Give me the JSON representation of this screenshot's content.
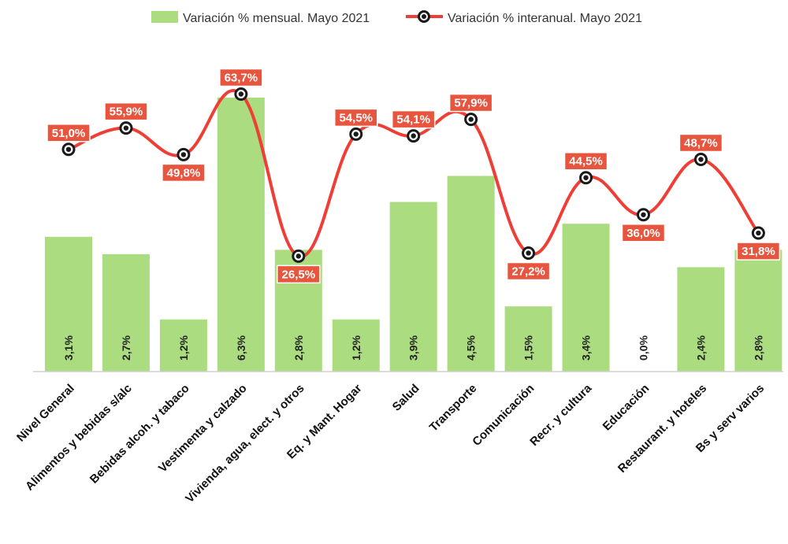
{
  "chart_data": {
    "type": "bar",
    "categories": [
      "Nivel General",
      "Alimentos y bebidas s/alc",
      "Bebidas alcoh. y tabaco",
      "Vestimenta y calzado",
      "Vivienda, agua, elect. y otros",
      "Eq. y Mant. Hogar",
      "Salud",
      "Transporte",
      "Comunicación",
      "Recr. y cultura",
      "Educación",
      "Restaurant. y hoteles",
      "Bs y serv varios"
    ],
    "series": [
      {
        "name": "Variación % mensual. Mayo 2021",
        "type": "bar",
        "values": [
          3.1,
          2.7,
          1.2,
          6.3,
          2.8,
          1.2,
          3.9,
          4.5,
          1.5,
          3.4,
          0.0,
          2.4,
          2.8
        ],
        "labels": [
          "3,1%",
          "2,7%",
          "1,2%",
          "6,3%",
          "2,8%",
          "1,2%",
          "3,9%",
          "4,5%",
          "1,5%",
          "3,4%",
          "0,0%",
          "2,4%",
          "2,8%"
        ]
      },
      {
        "name": "Variación % interanual. Mayo 2021",
        "type": "line",
        "values": [
          51.0,
          55.9,
          49.8,
          63.7,
          26.5,
          54.5,
          54.1,
          57.9,
          27.2,
          44.5,
          36.0,
          48.7,
          31.8
        ],
        "labels": [
          "51,0%",
          "55,9%",
          "49,8%",
          "63,7%",
          "26,5%",
          "54,5%",
          "54,1%",
          "57,9%",
          "27,2%",
          "44,5%",
          "36,0%",
          "48,7%",
          "31,8%"
        ]
      }
    ],
    "label_positions": [
      "above",
      "above",
      "below",
      "above",
      "below",
      "above",
      "above",
      "above",
      "below",
      "above",
      "below",
      "above",
      "below"
    ],
    "ylim_bars": [
      0,
      6.7
    ],
    "ylim_line": [
      0,
      73
    ],
    "legend_position": "top",
    "grid": false,
    "colors": {
      "bar": "#acdc80",
      "line": "#ef3e36",
      "label_box": "#e8553e",
      "marker": "#1a1a1a"
    }
  }
}
